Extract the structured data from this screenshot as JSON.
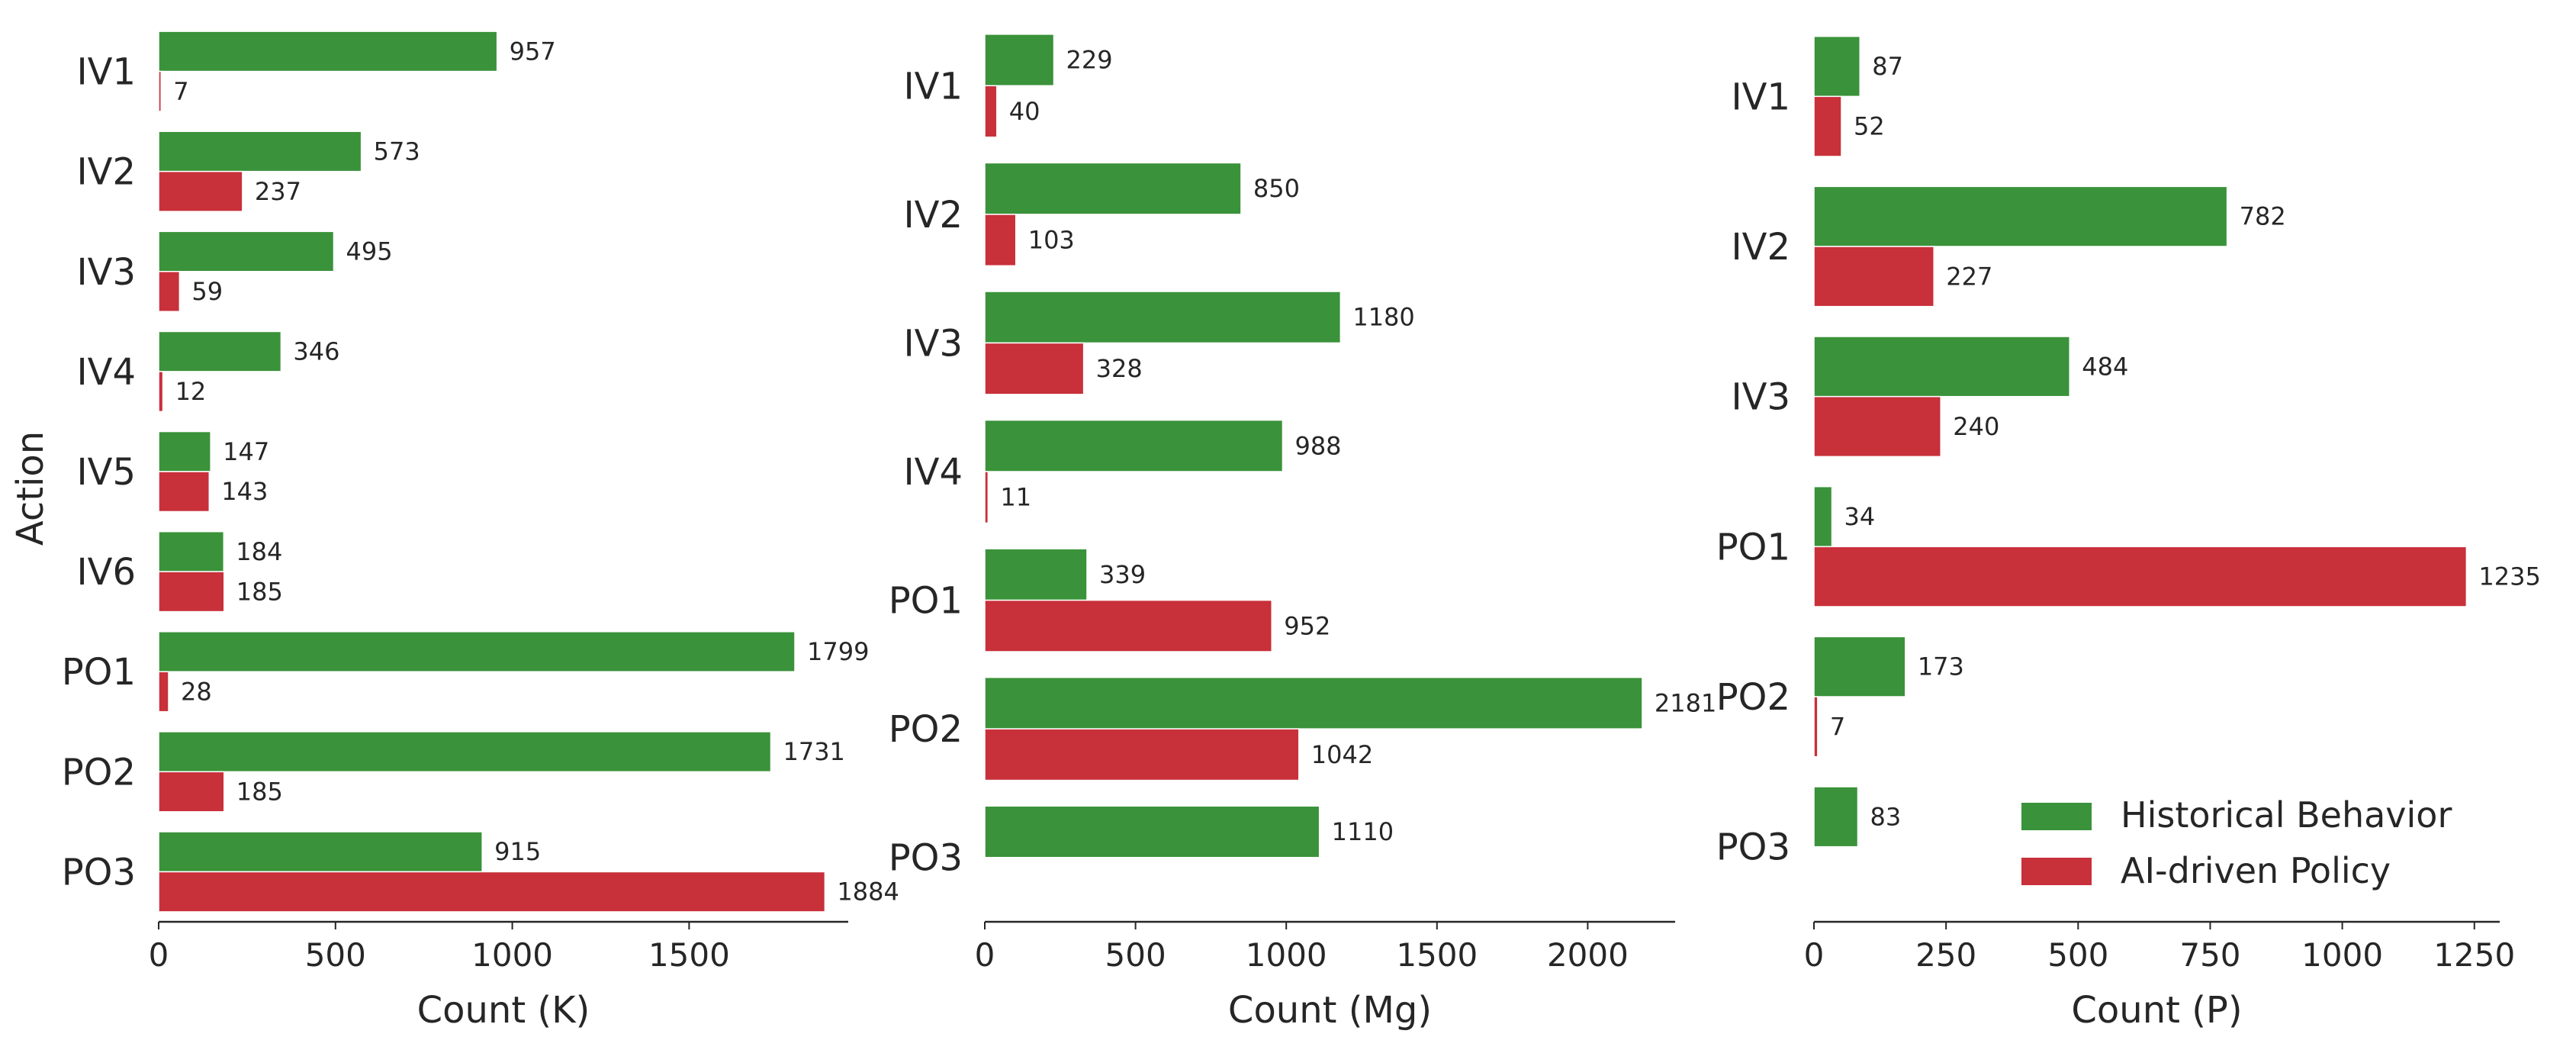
{
  "chart_data": [
    {
      "type": "bar",
      "orientation": "horizontal",
      "title": "",
      "xlabel": "Count (K)",
      "ylabel": "Action",
      "xlim": [
        0,
        1950
      ],
      "xticks": [
        0,
        500,
        1000,
        1500
      ],
      "categories": [
        "IV1",
        "IV2",
        "IV3",
        "IV4",
        "IV5",
        "IV6",
        "PO1",
        "PO2",
        "PO3"
      ],
      "series": [
        {
          "name": "Historical Behavior",
          "values": [
            957,
            573,
            495,
            346,
            147,
            184,
            1799,
            1731,
            915
          ]
        },
        {
          "name": "AI-driven Policy",
          "values": [
            7,
            237,
            59,
            12,
            143,
            185,
            28,
            185,
            1884
          ]
        }
      ]
    },
    {
      "type": "bar",
      "orientation": "horizontal",
      "title": "",
      "xlabel": "Count (Mg)",
      "ylabel": "",
      "xlim": [
        0,
        2290
      ],
      "xticks": [
        0,
        500,
        1000,
        1500,
        2000
      ],
      "categories": [
        "IV1",
        "IV2",
        "IV3",
        "IV4",
        "PO1",
        "PO2",
        "PO3"
      ],
      "series": [
        {
          "name": "Historical Behavior",
          "values": [
            229,
            850,
            1180,
            988,
            339,
            2181,
            1110
          ]
        },
        {
          "name": "AI-driven Policy",
          "values": [
            40,
            103,
            328,
            11,
            952,
            1042,
            null
          ]
        }
      ]
    },
    {
      "type": "bar",
      "orientation": "horizontal",
      "title": "",
      "xlabel": "Count (P)",
      "ylabel": "",
      "xlim": [
        0,
        1298
      ],
      "xticks": [
        0,
        250,
        500,
        750,
        1000,
        1250
      ],
      "categories": [
        "IV1",
        "IV2",
        "IV3",
        "PO1",
        "PO2",
        "PO3"
      ],
      "series": [
        {
          "name": "Historical Behavior",
          "values": [
            87,
            782,
            484,
            34,
            173,
            83
          ]
        },
        {
          "name": "AI-driven Policy",
          "values": [
            52,
            227,
            240,
            1235,
            7,
            null
          ]
        }
      ]
    }
  ],
  "legend": {
    "position": "lower-right of third panel",
    "items": [
      {
        "label": "Historical Behavior",
        "color": "#3a923a"
      },
      {
        "label": "AI-driven Policy",
        "color": "#c8303a"
      }
    ]
  },
  "colors": {
    "historical": "#3a923a",
    "ai": "#c8303a",
    "axis": "#262626"
  }
}
